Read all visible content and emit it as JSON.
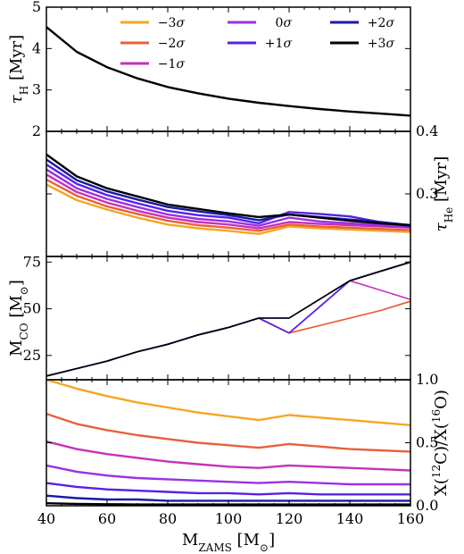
{
  "chart_data": [
    {
      "panel": "tau_H",
      "type": "line",
      "ylabel": "τ_H [Myr]",
      "ylabel_parts": {
        "main": "τ",
        "sub": "H",
        "unit": "[Myr]"
      },
      "ylim": [
        2,
        5
      ],
      "yticks": [
        "2",
        "3",
        "4",
        "5"
      ],
      "y_axis_side": "left",
      "x": [
        40,
        50,
        60,
        70,
        80,
        90,
        100,
        110,
        120,
        130,
        140,
        150,
        160
      ],
      "series": [
        {
          "name": "+3σ",
          "values": [
            4.52,
            3.92,
            3.55,
            3.28,
            3.07,
            2.92,
            2.79,
            2.69,
            2.61,
            2.54,
            2.48,
            2.43,
            2.38
          ]
        }
      ],
      "legend": {
        "placement": "top-right",
        "entries": [
          {
            "label": "−3σ",
            "color": "#f5a623"
          },
          {
            "label": "−2σ",
            "color": "#e8603c"
          },
          {
            "label": "−1σ",
            "color": "#c532b8"
          },
          {
            "label": "0σ",
            "color": "#9b30e6"
          },
          {
            "label": "+1σ",
            "color": "#5522e6"
          },
          {
            "label": "+2σ",
            "color": "#1a1aa6"
          },
          {
            "label": "+3σ",
            "color": "#000000"
          }
        ]
      }
    },
    {
      "panel": "tau_He",
      "type": "line",
      "ylabel": "τ_He [Myr]",
      "ylabel_parts": {
        "main": "τ",
        "sub": "He",
        "unit": "[Myr]"
      },
      "ylim": [
        0.2,
        0.4
      ],
      "yticks": [
        "0.3",
        "0.4"
      ],
      "y_axis_side": "right",
      "x": [
        40,
        50,
        60,
        70,
        80,
        90,
        100,
        110,
        120,
        130,
        140,
        150,
        160
      ],
      "series": [
        {
          "name": "−3σ",
          "values": [
            0.315,
            0.29,
            0.275,
            0.262,
            0.251,
            0.245,
            0.241,
            0.236,
            0.248,
            0.245,
            0.243,
            0.241,
            0.239
          ]
        },
        {
          "name": "−2σ",
          "values": [
            0.323,
            0.297,
            0.28,
            0.268,
            0.257,
            0.25,
            0.246,
            0.241,
            0.251,
            0.248,
            0.246,
            0.244,
            0.242
          ]
        },
        {
          "name": "−1σ",
          "values": [
            0.331,
            0.303,
            0.286,
            0.273,
            0.262,
            0.255,
            0.251,
            0.245,
            0.255,
            0.252,
            0.25,
            0.248,
            0.246
          ]
        },
        {
          "name": "0σ",
          "values": [
            0.339,
            0.309,
            0.292,
            0.279,
            0.267,
            0.26,
            0.256,
            0.249,
            0.262,
            0.256,
            0.253,
            0.25,
            0.247
          ]
        },
        {
          "name": "+1σ",
          "values": [
            0.347,
            0.316,
            0.298,
            0.285,
            0.273,
            0.266,
            0.262,
            0.253,
            0.271,
            0.268,
            0.264,
            0.255,
            0.248
          ]
        },
        {
          "name": "+2σ",
          "values": [
            0.355,
            0.322,
            0.304,
            0.291,
            0.279,
            0.272,
            0.266,
            0.258,
            0.267,
            0.263,
            0.259,
            0.255,
            0.25
          ]
        },
        {
          "name": "+3σ",
          "values": [
            0.363,
            0.328,
            0.309,
            0.296,
            0.283,
            0.276,
            0.269,
            0.263,
            0.267,
            0.262,
            0.257,
            0.253,
            0.25
          ]
        }
      ]
    },
    {
      "panel": "M_CO",
      "type": "line",
      "ylabel": "M_CO [M_⊙]",
      "ylabel_parts": {
        "main": "M",
        "sub": "CO",
        "unit_open": "[M",
        "unit_sub": "⊙",
        "unit_close": "]"
      },
      "ylim": [
        12,
        78
      ],
      "yticks": [
        "25",
        "50",
        "75"
      ],
      "y_axis_side": "left",
      "x": [
        40,
        50,
        60,
        70,
        80,
        90,
        100,
        110,
        120,
        130,
        140,
        150,
        160
      ],
      "series": [
        {
          "name": "−3σ",
          "values": [
            14,
            18,
            22,
            27,
            31,
            36,
            40,
            45,
            37,
            41,
            45,
            49,
            54
          ]
        },
        {
          "name": "−2σ",
          "values": [
            14,
            18,
            22,
            27,
            31,
            36,
            40,
            45,
            37,
            41,
            45,
            49,
            54
          ]
        },
        {
          "name": "−1σ",
          "values": [
            14,
            18,
            22,
            27,
            31,
            36,
            40,
            45,
            37,
            51,
            65,
            60,
            55
          ]
        },
        {
          "name": "0σ",
          "values": [
            14,
            18,
            22,
            27,
            31,
            36,
            40,
            45,
            37,
            51,
            65,
            70,
            75
          ]
        },
        {
          "name": "+1σ",
          "values": [
            14,
            18,
            22,
            27,
            31,
            36,
            40,
            45,
            37,
            51,
            65,
            70,
            75
          ]
        },
        {
          "name": "+2σ",
          "values": [
            14,
            18,
            22,
            27,
            31,
            36,
            40,
            45,
            45,
            55,
            65,
            70,
            75
          ]
        },
        {
          "name": "+3σ",
          "values": [
            14,
            18,
            22,
            27,
            31,
            36,
            40,
            45,
            45,
            55,
            65,
            70,
            75
          ]
        }
      ]
    },
    {
      "panel": "X12C_X16O",
      "type": "line",
      "ylabel": "X(12C)/X(16O)",
      "ylabel_parts": {
        "pre": "X(",
        "sup1": "12",
        "mid": "C)/X(",
        "sup2": "16",
        "post": "O)"
      },
      "ylim": [
        0,
        1.0
      ],
      "yticks": [
        "0.0",
        "0.5",
        "1.0"
      ],
      "y_axis_side": "right",
      "xlabel": "M_ZAMS [M_⊙]",
      "xlabel_parts": {
        "main": "M",
        "sub": "ZAMS",
        "unit_open": "[M",
        "unit_sub": "⊙",
        "unit_close": "]"
      },
      "xlim": [
        40,
        160
      ],
      "xticks": [
        "40",
        "60",
        "80",
        "100",
        "120",
        "140",
        "160"
      ],
      "x": [
        40,
        50,
        60,
        70,
        80,
        90,
        100,
        110,
        120,
        130,
        140,
        150,
        160
      ],
      "series": [
        {
          "name": "−3σ",
          "values": [
            1.0,
            0.93,
            0.87,
            0.82,
            0.78,
            0.74,
            0.71,
            0.68,
            0.72,
            0.7,
            0.68,
            0.66,
            0.64
          ]
        },
        {
          "name": "−2σ",
          "values": [
            0.73,
            0.65,
            0.6,
            0.56,
            0.53,
            0.5,
            0.48,
            0.46,
            0.49,
            0.47,
            0.45,
            0.44,
            0.43
          ]
        },
        {
          "name": "−1σ",
          "values": [
            0.51,
            0.45,
            0.41,
            0.38,
            0.35,
            0.33,
            0.31,
            0.3,
            0.32,
            0.31,
            0.3,
            0.29,
            0.28
          ]
        },
        {
          "name": "0σ",
          "values": [
            0.32,
            0.27,
            0.24,
            0.22,
            0.21,
            0.2,
            0.19,
            0.18,
            0.19,
            0.18,
            0.17,
            0.17,
            0.17
          ]
        },
        {
          "name": "+1σ",
          "values": [
            0.18,
            0.15,
            0.13,
            0.12,
            0.11,
            0.1,
            0.1,
            0.09,
            0.1,
            0.09,
            0.09,
            0.09,
            0.09
          ]
        },
        {
          "name": "+2σ",
          "values": [
            0.08,
            0.06,
            0.05,
            0.05,
            0.04,
            0.04,
            0.04,
            0.04,
            0.04,
            0.04,
            0.04,
            0.04,
            0.04
          ]
        },
        {
          "name": "+3σ",
          "values": [
            0.02,
            0.015,
            0.012,
            0.01,
            0.01,
            0.01,
            0.01,
            0.01,
            0.01,
            0.01,
            0.01,
            0.01,
            0.01
          ]
        }
      ]
    }
  ]
}
